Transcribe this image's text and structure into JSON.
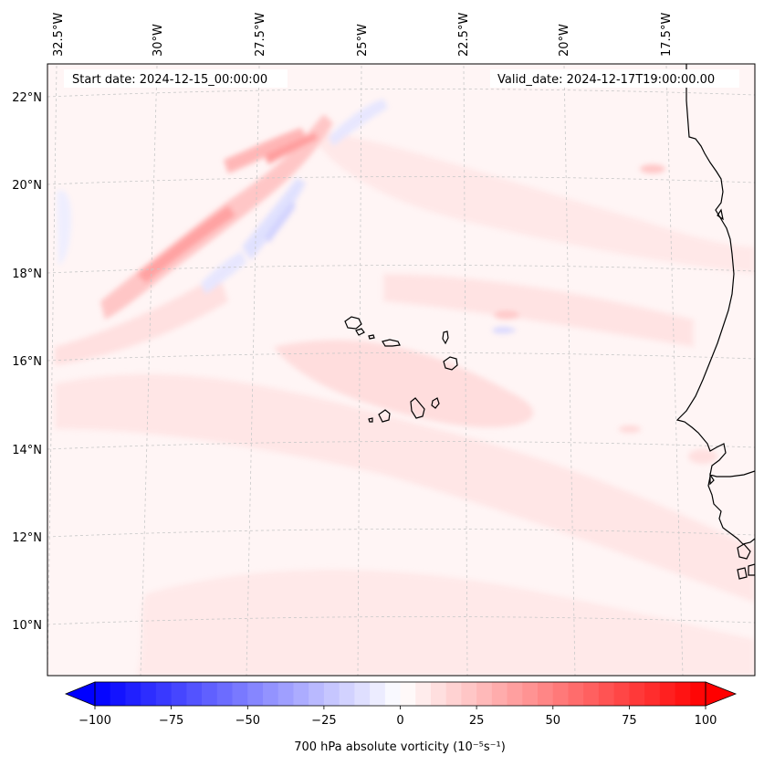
{
  "header": {
    "start_date": "Start date: 2024-12-15_00:00:00",
    "valid_date": "Valid_date: 2024-12-17T19:00:00.00"
  },
  "axes": {
    "lon_labels": [
      "32.5°W",
      "30°W",
      "27.5°W",
      "25°W",
      "22.5°W",
      "20°W",
      "17.5°W"
    ],
    "lat_labels": [
      "22°N",
      "20°N",
      "18°N",
      "16°N",
      "14°N",
      "12°N",
      "10°N"
    ]
  },
  "colorbar": {
    "label": "700 hPa absolute vorticity (10⁻⁵s⁻¹)",
    "tick_labels": [
      "−100",
      "−75",
      "−50",
      "−25",
      "0",
      "25",
      "50",
      "75",
      "100"
    ],
    "min": -100,
    "max": 100,
    "extend": "both",
    "colormap": "bwr",
    "low_color": "#0000ff",
    "mid_color": "#ffffff",
    "high_color": "#ff0000"
  },
  "map": {
    "projection": "lambert-conformal",
    "gridlines": true,
    "gridline_color": "#c8c8c8",
    "coast_color": "#000000",
    "background_field_color": "#fff4f4"
  }
}
